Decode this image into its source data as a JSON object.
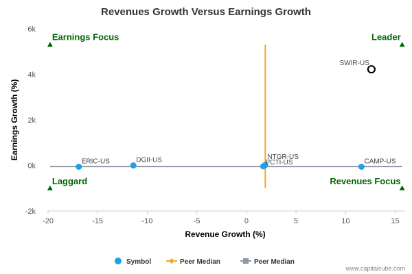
{
  "chart_data": {
    "type": "scatter",
    "title": "Revenues Growth Versus Earnings Growth",
    "xlabel": "Revenue Growth (%)",
    "ylabel": "Earnings Growth (%)",
    "xlim": [
      -20,
      16
    ],
    "ylim": [
      -2000,
      6000
    ],
    "x_ticks": [
      -20,
      -15,
      -10,
      -5,
      0,
      5,
      10,
      15
    ],
    "y_ticks": [
      {
        "value": -2000,
        "label": "-2k"
      },
      {
        "value": 0,
        "label": "0k"
      },
      {
        "value": 2000,
        "label": "2k"
      },
      {
        "value": 4000,
        "label": "4k"
      },
      {
        "value": 6000,
        "label": "6k"
      }
    ],
    "grid": false,
    "colors": {
      "symbol": "#1ea1e6",
      "peer_median_x": "#f5a623",
      "peer_median_y": "#8e9aa6",
      "quadrant": "#006600",
      "highlight": "#000000"
    },
    "points": [
      {
        "name": "ERIC-US",
        "x": -16.9,
        "y": -60
      },
      {
        "name": "DGII-US",
        "x": -11.4,
        "y": 0
      },
      {
        "name": "NTGR-US",
        "x": 1.9,
        "y": 20
      },
      {
        "name": "PCTI-US",
        "x": 1.7,
        "y": -40
      },
      {
        "name": "CAMP-US",
        "x": 11.6,
        "y": -60
      }
    ],
    "highlight": {
      "name": "SWIR-US",
      "x": 12.6,
      "y": 4220
    },
    "peer_median_x": {
      "x": 1.9,
      "y_range": [
        -1000,
        5300
      ]
    },
    "peer_median_y": {
      "y": -50,
      "x_range": [
        -19.8,
        15.7
      ]
    },
    "quadrants": [
      {
        "label": "Earnings Focus",
        "corner": "top-left",
        "x": -19.8,
        "y": 5300
      },
      {
        "label": "Leader",
        "corner": "top-right",
        "x": 15.7,
        "y": 5300
      },
      {
        "label": "Laggard",
        "corner": "bottom-left",
        "x": -19.8,
        "y": -1000
      },
      {
        "label": "Revenues Focus",
        "corner": "bottom-right",
        "x": 15.7,
        "y": -1000
      }
    ],
    "legend": {
      "placement": "bottom",
      "items": [
        {
          "label": "Symbol",
          "marker": "circle",
          "color": "#1ea1e6"
        },
        {
          "label": "Peer Median",
          "marker": "diamond-line",
          "color": "#f5a623"
        },
        {
          "label": "Peer Median",
          "marker": "square-line",
          "color": "#8e9aa6"
        }
      ]
    },
    "credit": "www.capitalcube.com"
  }
}
